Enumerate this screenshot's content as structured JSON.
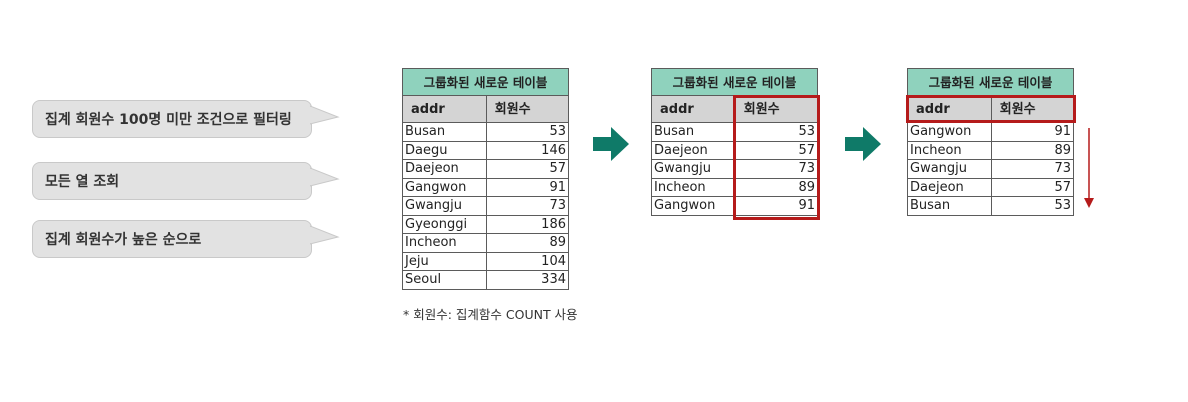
{
  "bubbles": [
    "집계 회원수 100명 미만 조건으로 필터링",
    "모든 열 조회",
    "집계 회원수가 높은 순으로"
  ],
  "tables": [
    {
      "title": "그룹화된 새로운 테이블",
      "headers": [
        "addr",
        "회원수"
      ],
      "rows": [
        [
          "Busan",
          "53"
        ],
        [
          "Daegu",
          "146"
        ],
        [
          "Daejeon",
          "57"
        ],
        [
          "Gangwon",
          "91"
        ],
        [
          "Gwangju",
          "73"
        ],
        [
          "Gyeonggi",
          "186"
        ],
        [
          "Incheon",
          "89"
        ],
        [
          "Jeju",
          "104"
        ],
        [
          "Seoul",
          "334"
        ]
      ]
    },
    {
      "title": "그룹화된 새로운 테이블",
      "headers": [
        "addr",
        "회원수"
      ],
      "rows": [
        [
          "Busan",
          "53"
        ],
        [
          "Daejeon",
          "57"
        ],
        [
          "Gwangju",
          "73"
        ],
        [
          "Incheon",
          "89"
        ],
        [
          "Gangwon",
          "91"
        ]
      ]
    },
    {
      "title": "그룹화된 새로운 테이블",
      "headers": [
        "addr",
        "회원수"
      ],
      "rows": [
        [
          "Gangwon",
          "91"
        ],
        [
          "Incheon",
          "89"
        ],
        [
          "Gwangju",
          "73"
        ],
        [
          "Daejeon",
          "57"
        ],
        [
          "Busan",
          "53"
        ]
      ]
    }
  ],
  "footnote": "* 회원수: 집계함수 COUNT 사용",
  "colors": {
    "title_bg": "#8fd2bd",
    "header_bg": "#d4d4d4",
    "highlight": "#b51b1b",
    "arrow": "#0f7a68",
    "bubble_bg": "#e2e2e2"
  }
}
